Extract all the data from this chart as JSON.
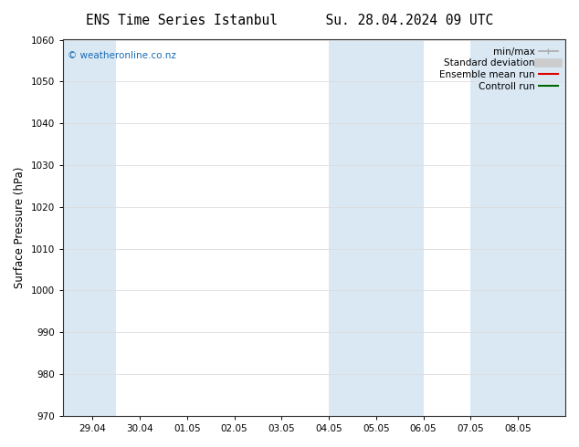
{
  "title_left": "ENS Time Series Istanbul",
  "title_right": "Su. 28.04.2024 09 UTC",
  "ylabel": "Surface Pressure (hPa)",
  "ylim": [
    970,
    1060
  ],
  "yticks": [
    970,
    980,
    990,
    1000,
    1010,
    1020,
    1030,
    1040,
    1050,
    1060
  ],
  "bg_color": "#ffffff",
  "plot_bg_color": "#ffffff",
  "shaded_band_color": "#dae8f4",
  "watermark": "© weatheronline.co.nz",
  "watermark_color": "#1a6cb5",
  "x_tick_labels": [
    "29.04",
    "30.04",
    "01.05",
    "02.05",
    "03.05",
    "04.05",
    "05.05",
    "06.05",
    "07.05",
    "08.05"
  ],
  "shaded_regions": [
    [
      "2024-04-28 09:00",
      "2024-04-29 12:00"
    ],
    [
      "2024-05-04 00:00",
      "2024-05-06 00:00"
    ],
    [
      "2024-05-07 00:00",
      "2024-05-09 00:00"
    ]
  ],
  "x_start": "2024-04-28 09:00",
  "x_end": "2024-05-09 00:00",
  "tick_dates": [
    "2024-04-29",
    "2024-04-30",
    "2024-05-01",
    "2024-05-02",
    "2024-05-03",
    "2024-05-04",
    "2024-05-05",
    "2024-05-06",
    "2024-05-07",
    "2024-05-08"
  ],
  "legend_items": [
    {
      "label": "min/max",
      "color": "#aaaaaa",
      "lw": 1.2
    },
    {
      "label": "Standard deviation",
      "color": "#cccccc",
      "lw": 7
    },
    {
      "label": "Ensemble mean run",
      "color": "#dd0000",
      "lw": 1.5
    },
    {
      "label": "Controll run",
      "color": "#006600",
      "lw": 1.5
    }
  ],
  "grid_color": "#dddddd",
  "spine_color": "#333333",
  "tick_label_fontsize": 7.5,
  "axis_label_fontsize": 8.5,
  "title_fontsize": 10.5,
  "watermark_fontsize": 7.5,
  "legend_fontsize": 7.5
}
